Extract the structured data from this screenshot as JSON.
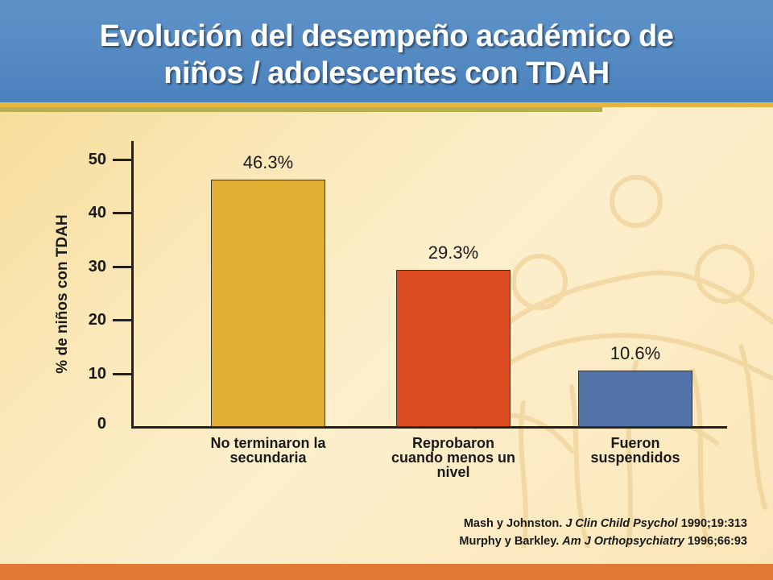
{
  "slide": {
    "title_line1": "Evolución del desempeño académico de",
    "title_line2": "niños / adolescentes con TDAH"
  },
  "references": [
    {
      "authors": "Mash y Johnston.",
      "journal": "J Clin Child Psychol",
      "citation": "1990;19:313"
    },
    {
      "authors": "Murphy y Barkley.",
      "journal": "Am J Orthopsychiatry",
      "citation": "1996;66:93"
    }
  ],
  "colors": {
    "header": "#4c82bd",
    "bar1": "#e3ae34",
    "bar2": "#dc4a22",
    "bar3": "#5373a9",
    "bottom_bar": "#e17a35"
  },
  "chart_data": {
    "type": "bar",
    "categories": [
      "No terminaron la secundaria",
      "Reprobaron cuando menos un nivel",
      "Fueron suspendidos"
    ],
    "category_lines": [
      [
        "No terminaron la",
        "secundaria"
      ],
      [
        "Reprobaron",
        "cuando menos un",
        "nivel"
      ],
      [
        "Fueron",
        "suspendidos"
      ]
    ],
    "values": [
      46.3,
      29.3,
      10.6
    ],
    "data_labels": [
      "46.3%",
      "29.3%",
      "10.6%"
    ],
    "ylabel": "% de niños con TDAH",
    "xlabel": "",
    "yticks": [
      "0",
      "10",
      "20",
      "30",
      "40",
      "50"
    ],
    "ylim": [
      0,
      50
    ],
    "grid": false,
    "legend": "none"
  }
}
